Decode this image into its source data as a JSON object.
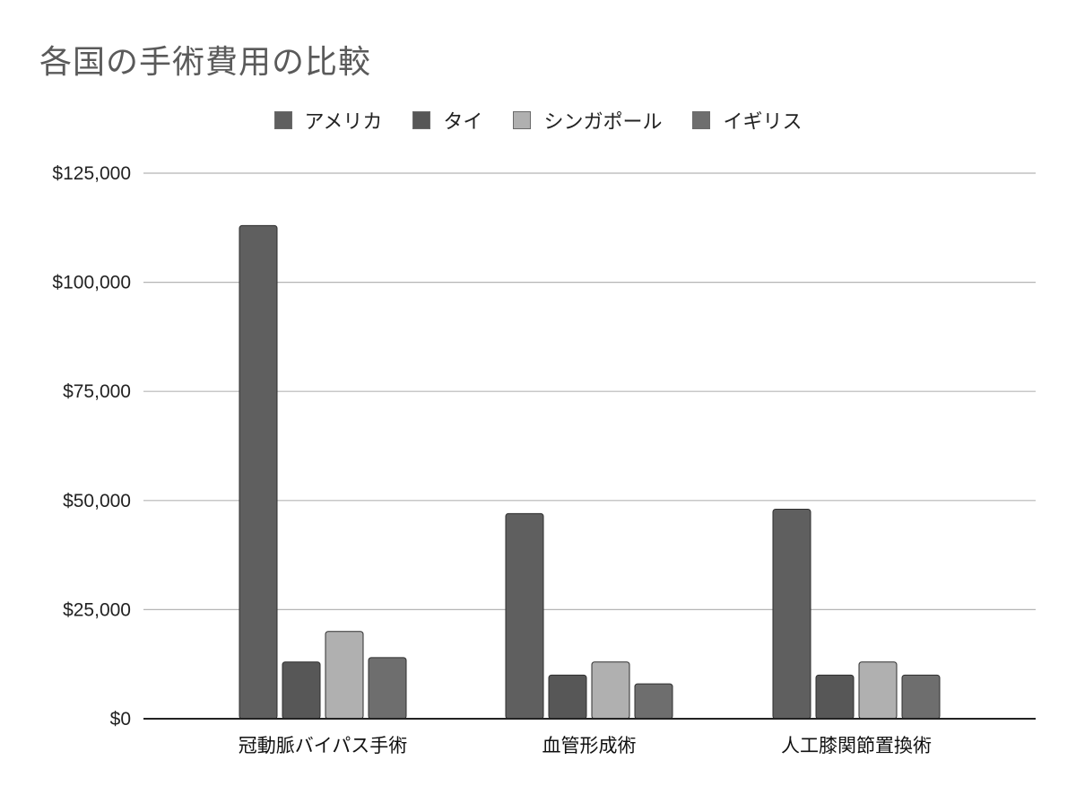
{
  "chart_data": {
    "type": "bar",
    "title": "各国の手術費用の比較",
    "xlabel": "",
    "ylabel": "",
    "categories": [
      "冠動脈バイパス手術",
      "血管形成術",
      "人工膝関節置換術"
    ],
    "series": [
      {
        "name": "アメリカ",
        "values": [
          113000,
          47000,
          48000
        ],
        "color": "#5f5f5f"
      },
      {
        "name": "タイ",
        "values": [
          13000,
          10000,
          10000
        ],
        "color": "#575757"
      },
      {
        "name": "シンガポール",
        "values": [
          20000,
          13000,
          13000
        ],
        "color": "#b0b0b0"
      },
      {
        "name": "イギリス",
        "values": [
          14000,
          8000,
          10000
        ],
        "color": "#6e6e6e"
      }
    ],
    "ylim": [
      0,
      125000
    ],
    "yticks": [
      0,
      25000,
      50000,
      75000,
      100000,
      125000
    ],
    "ytick_labels": [
      "$0",
      "$25,000",
      "$50,000",
      "$75,000",
      "$100,000",
      "$125,000"
    ],
    "grid": true,
    "legend_position": "top-center"
  }
}
